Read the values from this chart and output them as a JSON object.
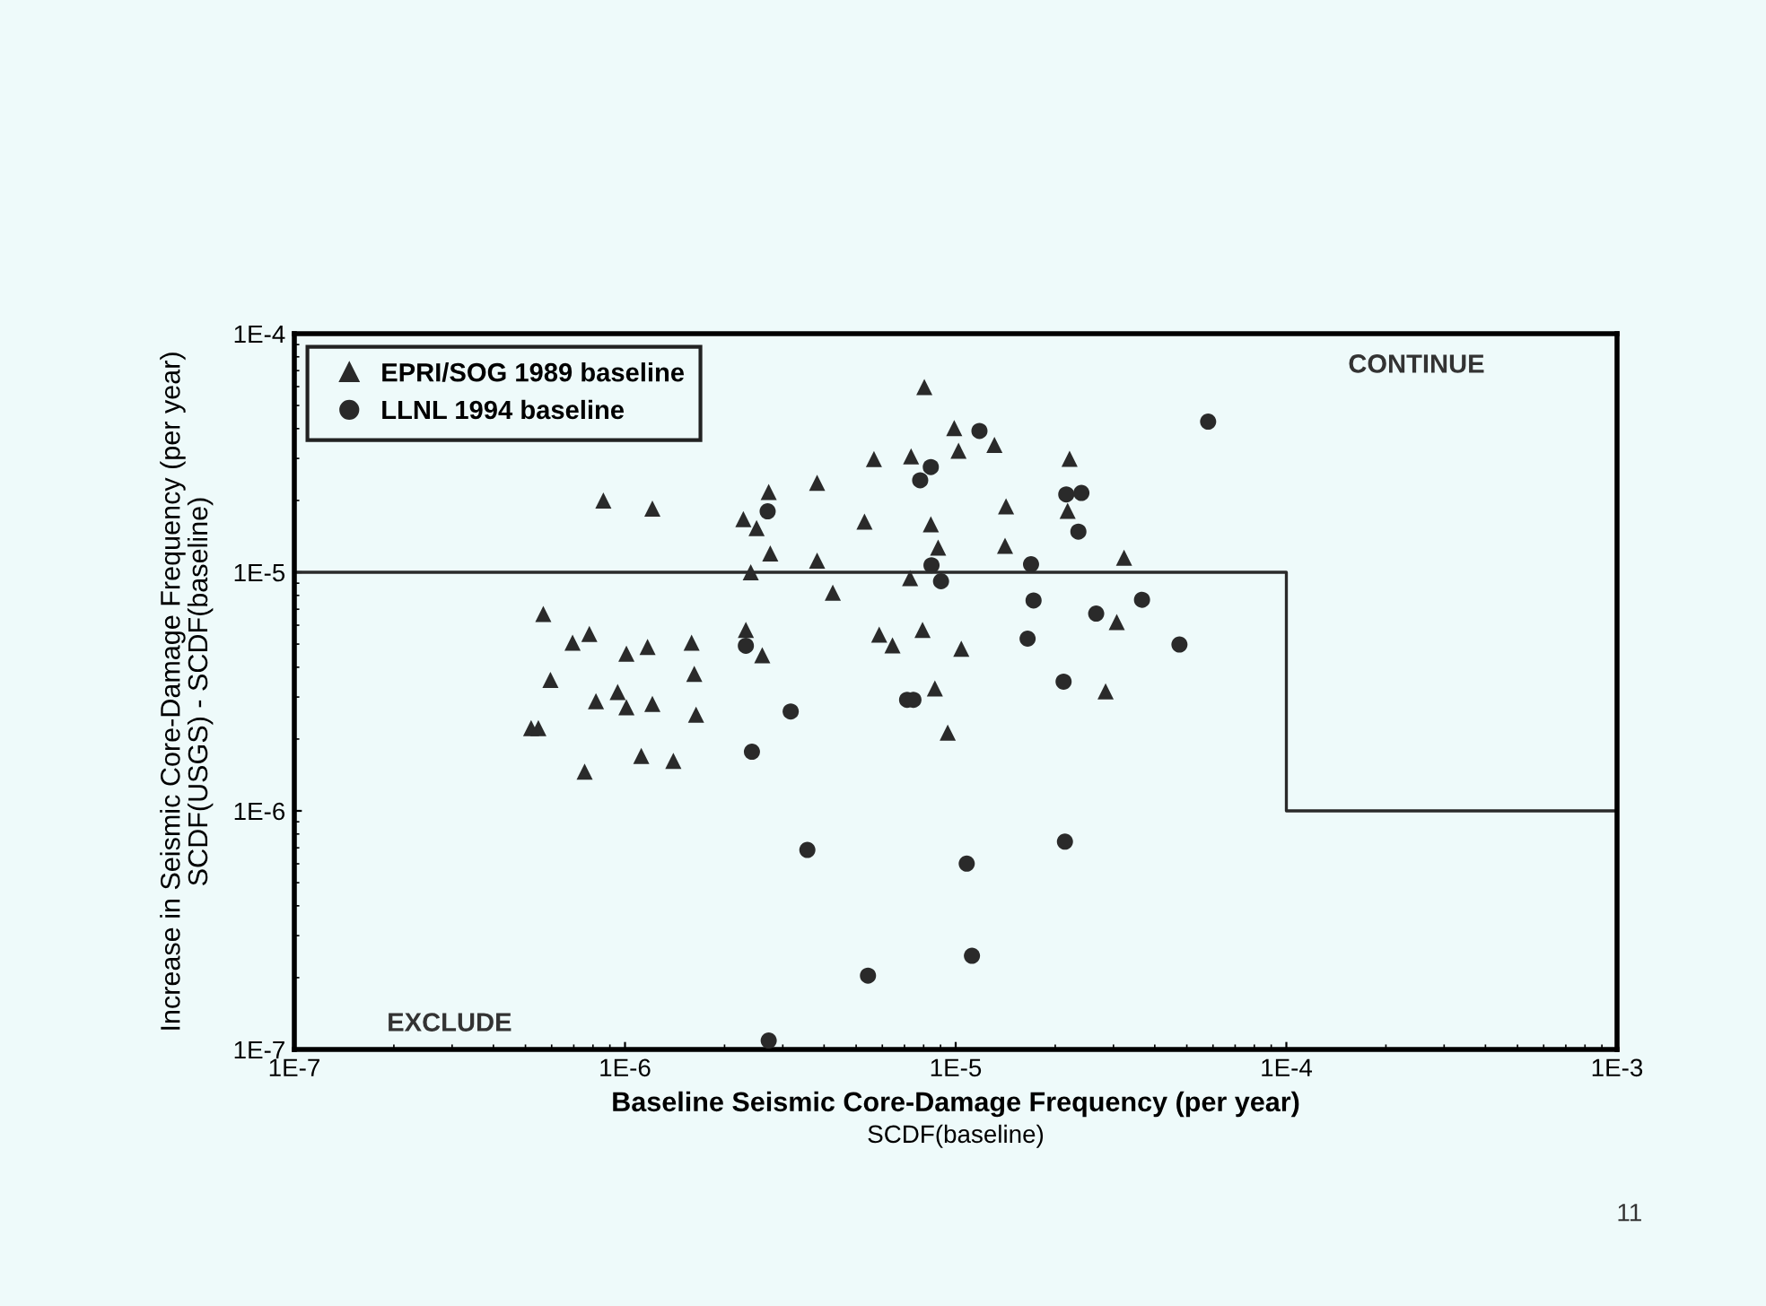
{
  "chart_data": {
    "type": "scatter",
    "xlabel": "Baseline Seismic Core-Damage Frequency (per year)\nSCDF(baseline)",
    "ylabel": "Increase in Seismic Core-Damage Frequency (per year)\nSCDF(USGS) - SCDF(baseline)",
    "log": "xy",
    "xlim": [
      1e-07,
      0.001
    ],
    "ylim": [
      1e-07,
      0.0001
    ],
    "xticks": [
      {
        "value": 1e-07,
        "label": "1E-7"
      },
      {
        "value": 1e-06,
        "label": "1E-6"
      },
      {
        "value": 1e-05,
        "label": "1E-5"
      },
      {
        "value": 0.0001,
        "label": "1E-4"
      },
      {
        "value": 0.001,
        "label": "1E-3"
      }
    ],
    "yticks": [
      {
        "value": 1e-07,
        "label": "1E-7"
      },
      {
        "value": 1e-06,
        "label": "1E-6"
      },
      {
        "value": 1e-05,
        "label": "1E-5"
      },
      {
        "value": 0.0001,
        "label": "1E-4"
      }
    ],
    "grid": false,
    "legend": "top left",
    "series": [
      {
        "name": "EPRI/SOG 1989 baseline",
        "color": "#2a2a2a",
        "marker": "triangle",
        "x": [
          8.6e-07,
          1.21e-06,
          2.72e-06,
          2.28e-06,
          2.5e-06,
          2.75e-06,
          2.4e-06,
          5.66e-07,
          7.8e-07,
          6.94e-07,
          1.01e-06,
          1.17e-06,
          1.59e-06,
          2.32e-06,
          2.6e-06,
          5.95e-07,
          1.62e-06,
          9.5e-07,
          8.17e-07,
          1.01e-06,
          1.21e-06,
          1.64e-06,
          5.2e-07,
          5.47e-07,
          1.12e-06,
          1.4e-06,
          7.55e-07,
          8.65e-06,
          9.46e-06,
          2.84e-05,
          8.04e-06,
          9.9e-06,
          1.31e-05,
          1.02e-05,
          5.66e-06,
          7.33e-06,
          2.21e-05,
          3.81e-06,
          5.3e-06,
          8.41e-06,
          1.42e-05,
          2.18e-05,
          8.85e-06,
          1.41e-05,
          3.23e-05,
          3.81e-06,
          7.28e-06,
          4.25e-06,
          5.87e-06,
          7.94e-06,
          6.44e-06,
          1.04e-05,
          3.07e-05
        ],
        "values": [
          2e-05,
          1.85e-05,
          2.17e-05,
          1.67e-05,
          1.53e-05,
          1.2e-05,
          1e-05,
          6.68e-06,
          5.52e-06,
          5.07e-06,
          4.56e-06,
          4.86e-06,
          5.07e-06,
          5.74e-06,
          4.49e-06,
          3.54e-06,
          3.75e-06,
          3.15e-06,
          2.88e-06,
          2.72e-06,
          2.81e-06,
          2.53e-06,
          2.22e-06,
          2.22e-06,
          1.7e-06,
          1.62e-06,
          1.46e-06,
          3.26e-06,
          2.13e-06,
          3.17e-06,
          5.98e-05,
          4.02e-05,
          3.42e-05,
          3.23e-05,
          2.98e-05,
          3.06e-05,
          2.99e-05,
          2.37e-05,
          1.63e-05,
          1.59e-05,
          1.89e-05,
          1.81e-05,
          1.27e-05,
          1.29e-05,
          1.15e-05,
          1.12e-05,
          9.45e-06,
          8.22e-06,
          5.48e-06,
          5.74e-06,
          4.94e-06,
          4.78e-06,
          6.19e-06
        ]
      },
      {
        "name": "LLNL 1994 baseline",
        "color": "#2a2a2a",
        "marker": "circle",
        "x": [
          2.7e-06,
          2.32e-06,
          3.17e-06,
          2.42e-06,
          1.18e-05,
          8.41e-06,
          7.81e-06,
          2.16e-05,
          2.4e-05,
          2.35e-05,
          8.45e-06,
          9.03e-06,
          1.69e-05,
          1.72e-05,
          2.66e-05,
          3.66e-05,
          1.65e-05,
          4.75e-05,
          2.12e-05,
          7.13e-06,
          7.45e-06,
          5.8e-05,
          3.56e-06,
          2.14e-05,
          1.08e-05,
          1.12e-05,
          5.43e-06,
          2.72e-06
        ],
        "values": [
          1.8e-05,
          4.92e-06,
          2.61e-06,
          1.77e-06,
          3.91e-05,
          2.76e-05,
          2.43e-05,
          2.12e-05,
          2.15e-05,
          1.48e-05,
          1.07e-05,
          9.17e-06,
          1.08e-05,
          7.62e-06,
          6.71e-06,
          7.67e-06,
          5.27e-06,
          4.98e-06,
          3.48e-06,
          2.92e-06,
          2.92e-06,
          4.28e-05,
          6.86e-07,
          7.43e-07,
          6.01e-07,
          2.47e-07,
          2.04e-07,
          1.09e-07
        ]
      },
      {
        "type": "line",
        "color": "#2a2a2a",
        "marker": "none",
        "x": [
          1e-07,
          0.0001,
          0.0001,
          0.001
        ],
        "values": [
          1e-05,
          1e-05,
          1e-06,
          1e-06
        ]
      }
    ],
    "annotations": [
      "CONTINUE",
      "EXCLUDE",
      "11"
    ]
  }
}
